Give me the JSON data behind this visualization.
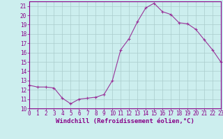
{
  "x": [
    0,
    1,
    2,
    3,
    4,
    5,
    6,
    7,
    8,
    9,
    10,
    11,
    12,
    13,
    14,
    15,
    16,
    17,
    18,
    19,
    20,
    21,
    22,
    23
  ],
  "y": [
    12.5,
    12.3,
    12.3,
    12.2,
    11.1,
    10.5,
    11.0,
    11.1,
    11.2,
    11.5,
    13.0,
    16.3,
    17.5,
    19.3,
    20.8,
    21.3,
    20.4,
    20.1,
    19.2,
    19.1,
    18.5,
    17.4,
    16.3,
    15.0
  ],
  "line_color": "#993399",
  "marker": "+",
  "markersize": 3,
  "linewidth": 0.8,
  "bg_color": "#cceeee",
  "grid_color": "#aacccc",
  "xlabel": "Windchill (Refroidissement éolien,°C)",
  "xlim": [
    0,
    23
  ],
  "ylim": [
    10,
    21.5
  ],
  "yticks": [
    10,
    11,
    12,
    13,
    14,
    15,
    16,
    17,
    18,
    19,
    20,
    21
  ],
  "xticks": [
    0,
    1,
    2,
    3,
    4,
    5,
    6,
    7,
    8,
    9,
    10,
    11,
    12,
    13,
    14,
    15,
    16,
    17,
    18,
    19,
    20,
    21,
    22,
    23
  ],
  "xlabel_fontsize": 6.5,
  "tick_fontsize": 5.5,
  "tick_color": "#880088",
  "axis_color": "#880088",
  "spine_color": "#880088"
}
